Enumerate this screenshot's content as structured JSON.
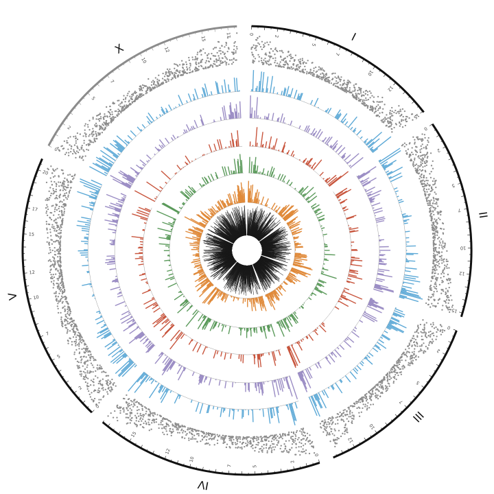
{
  "chart_data": {
    "type": "circos",
    "title": "",
    "chromosomes": [
      {
        "name": "I",
        "length": 15.1,
        "ticks": [
          0,
          2,
          5,
          7,
          10,
          12,
          15
        ]
      },
      {
        "name": "II",
        "length": 15.3,
        "ticks": [
          0,
          2,
          5,
          7,
          10,
          12,
          15
        ]
      },
      {
        "name": "III",
        "length": 13.8,
        "ticks": [
          0,
          2,
          5,
          7,
          10,
          12
        ]
      },
      {
        "name": "IV",
        "length": 17.5,
        "ticks": [
          0,
          2,
          5,
          7,
          10,
          12,
          15
        ]
      },
      {
        "name": "V",
        "length": 20.9,
        "ticks": [
          0,
          2,
          5,
          7,
          10,
          12,
          15,
          17,
          20
        ]
      },
      {
        "name": "X",
        "length": 17.7,
        "ticks": [
          0,
          2,
          5,
          7,
          10,
          12,
          15,
          17
        ]
      }
    ],
    "tracks": [
      {
        "kind": "scatter",
        "color": "#8c8c8c"
      },
      {
        "kind": "histogram",
        "color": "#5ba8d6"
      },
      {
        "kind": "histogram",
        "color": "#9a8cc4"
      },
      {
        "kind": "histogram",
        "color": "#c8553d"
      },
      {
        "kind": "histogram",
        "color": "#5b9a5b"
      },
      {
        "kind": "histogram",
        "color": "#e08a3a"
      },
      {
        "kind": "lines",
        "color": "#1a1a1a"
      }
    ],
    "colors": {
      "ideogram": "#111111",
      "ideogram_x": "#8c8c8c",
      "baseline": "#9a9a9a"
    }
  }
}
